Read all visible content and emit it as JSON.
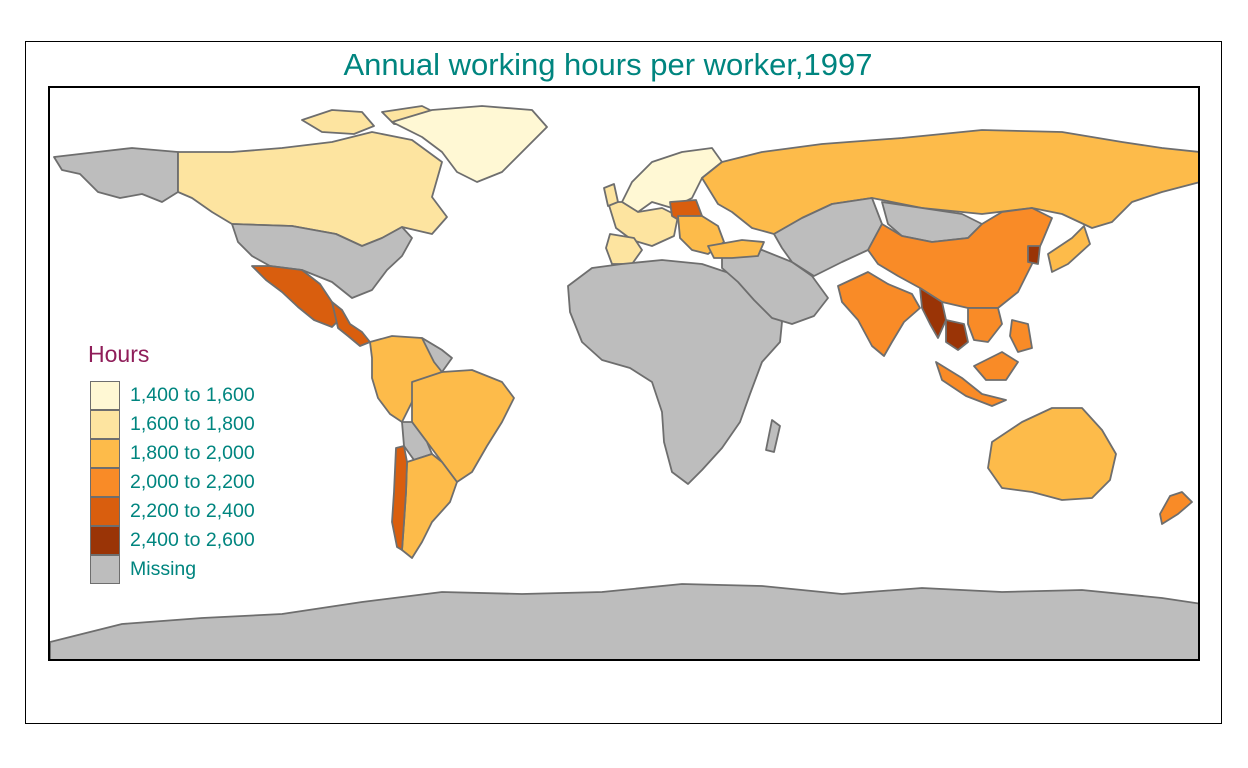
{
  "title": "Annual working hours per worker,1997",
  "colors": {
    "title_text": "#00857f",
    "legend_title_text": "#8f1d59",
    "legend_label_text": "#00857f",
    "border": "#6e6e6e",
    "ocean": "#ffffff"
  },
  "legend": {
    "title": "Hours",
    "items": [
      {
        "label": "1,400 to 1,600",
        "color": "#fff8d4"
      },
      {
        "label": "1,600 to 1,800",
        "color": "#fde4a0"
      },
      {
        "label": "1,800 to 2,000",
        "color": "#fdbb4a"
      },
      {
        "label": "2,000 to 2,200",
        "color": "#f98b27"
      },
      {
        "label": "2,200 to 2,400",
        "color": "#d95e0e"
      },
      {
        "label": "2,400 to 2,600",
        "color": "#9a3406"
      },
      {
        "label": "Missing",
        "color": "#bdbdbd"
      }
    ]
  },
  "regions": [
    {
      "name": "Alaska",
      "class": "Missing"
    },
    {
      "name": "Canada",
      "class": "1,600 to 1,800"
    },
    {
      "name": "Greenland",
      "class": "1,400 to 1,600"
    },
    {
      "name": "United States",
      "class": "Missing"
    },
    {
      "name": "Mexico",
      "class": "2,200 to 2,400"
    },
    {
      "name": "Central America",
      "class": "2,200 to 2,400"
    },
    {
      "name": "Northern South America",
      "class": "1,800 to 2,000"
    },
    {
      "name": "Brazil",
      "class": "1,800 to 2,000"
    },
    {
      "name": "Bolivia",
      "class": "Missing"
    },
    {
      "name": "Argentina",
      "class": "1,800 to 2,000"
    },
    {
      "name": "Chile",
      "class": "2,200 to 2,400"
    },
    {
      "name": "Guianas",
      "class": "Missing"
    },
    {
      "name": "Scandinavia",
      "class": "1,400 to 1,600"
    },
    {
      "name": "Western Europe",
      "class": "1,600 to 1,800"
    },
    {
      "name": "Iberia",
      "class": "1,600 to 1,800"
    },
    {
      "name": "Poland",
      "class": "2,200 to 2,400"
    },
    {
      "name": "Southeast Europe",
      "class": "1,800 to 2,000"
    },
    {
      "name": "Russia",
      "class": "1,800 to 2,000"
    },
    {
      "name": "Africa",
      "class": "Missing"
    },
    {
      "name": "Middle East",
      "class": "Missing"
    },
    {
      "name": "Turkey",
      "class": "1,800 to 2,000"
    },
    {
      "name": "Central Asia",
      "class": "Missing"
    },
    {
      "name": "Mongolia",
      "class": "Missing"
    },
    {
      "name": "China",
      "class": "2,000 to 2,200"
    },
    {
      "name": "India",
      "class": "2,000 to 2,200"
    },
    {
      "name": "Myanmar",
      "class": "2,400 to 2,600"
    },
    {
      "name": "Thailand",
      "class": "2,400 to 2,600"
    },
    {
      "name": "Indochina",
      "class": "2,000 to 2,200"
    },
    {
      "name": "South Korea",
      "class": "2,400 to 2,600"
    },
    {
      "name": "Japan",
      "class": "1,800 to 2,000"
    },
    {
      "name": "Maritime Southeast Asia",
      "class": "2,000 to 2,200"
    },
    {
      "name": "Australia",
      "class": "1,800 to 2,000"
    },
    {
      "name": "New Zealand",
      "class": "2,000 to 2,200"
    },
    {
      "name": "Antarctica",
      "class": "Missing"
    }
  ]
}
